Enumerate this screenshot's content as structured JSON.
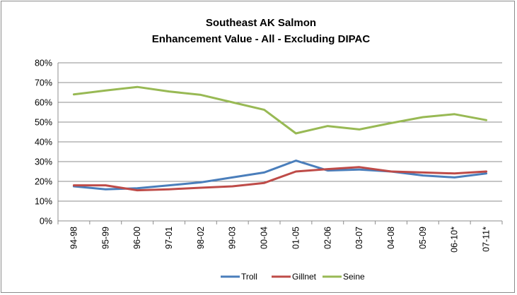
{
  "chart_data": {
    "type": "line",
    "title_line1": "Southeast AK Salmon",
    "title_line2": "Enhancement Value - All - Excluding DIPAC",
    "xlabel": "",
    "ylabel": "",
    "categories": [
      "94-98",
      "95-99",
      "96-00",
      "97-01",
      "98-02",
      "99-03",
      "00-04",
      "01-05",
      "02-06",
      "03-07",
      "04-08",
      "05-09",
      "06-10*",
      "07-11*"
    ],
    "y_ticks": [
      "0%",
      "10%",
      "20%",
      "30%",
      "40%",
      "50%",
      "60%",
      "70%",
      "80%"
    ],
    "ylim": [
      0,
      80
    ],
    "grid": true,
    "legend_position": "bottom",
    "series": [
      {
        "name": "Troll",
        "color": "#4a7ebb",
        "values": [
          17.5,
          16,
          16.5,
          18,
          19.5,
          22,
          24.5,
          30.5,
          25.5,
          26,
          25,
          23,
          22,
          24
        ]
      },
      {
        "name": "Gillnet",
        "color": "#be4b48",
        "values": [
          18,
          18,
          15.5,
          16,
          16.8,
          17.5,
          19.2,
          25,
          26.2,
          27.2,
          25,
          24.5,
          24,
          25
        ]
      },
      {
        "name": "Seine",
        "color": "#98b954",
        "values": [
          64,
          66,
          67.8,
          65.5,
          63.8,
          60,
          56.2,
          44.3,
          48,
          46.3,
          49.5,
          52.5,
          54,
          51
        ]
      }
    ]
  }
}
